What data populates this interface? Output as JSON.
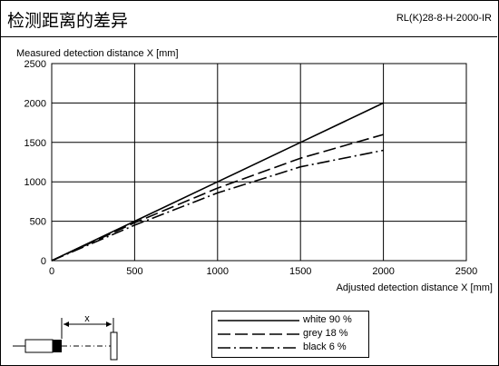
{
  "header": {
    "title": "检测距离的差异",
    "model": "RL(K)28-8-H-2000-IR"
  },
  "chart_data": {
    "type": "line",
    "title": "",
    "xlabel": "Adjusted detection distance X [mm]",
    "ylabel": "Measured detection distance X [mm]",
    "xlim": [
      0,
      2500
    ],
    "ylim": [
      0,
      2500
    ],
    "xticks": [
      0,
      500,
      1000,
      1500,
      2000,
      2500
    ],
    "yticks": [
      0,
      500,
      1000,
      1500,
      2000,
      2500
    ],
    "xtick_labels": [
      "0",
      "500",
      "1000",
      "1500",
      "2000",
      "2500"
    ],
    "ytick_labels": [
      "0",
      "500",
      "1000",
      "1500",
      "2000",
      "2500"
    ],
    "grid": true,
    "legend_position": "bottom-center",
    "series": [
      {
        "name": "white 90 %",
        "style": "solid",
        "x": [
          0,
          500,
          1000,
          1500,
          2000
        ],
        "y": [
          0,
          500,
          1000,
          1500,
          2000
        ]
      },
      {
        "name": "grey 18 %",
        "style": "dashed",
        "x": [
          0,
          500,
          1000,
          1500,
          2000
        ],
        "y": [
          0,
          480,
          920,
          1300,
          1600
        ]
      },
      {
        "name": "black 6 %",
        "style": "dashdot",
        "x": [
          0,
          500,
          1000,
          1500,
          2000
        ],
        "y": [
          0,
          450,
          860,
          1190,
          1400
        ]
      }
    ]
  },
  "diagram": {
    "label": "x"
  },
  "colors": {
    "line": "#000000",
    "background": "#ffffff"
  }
}
